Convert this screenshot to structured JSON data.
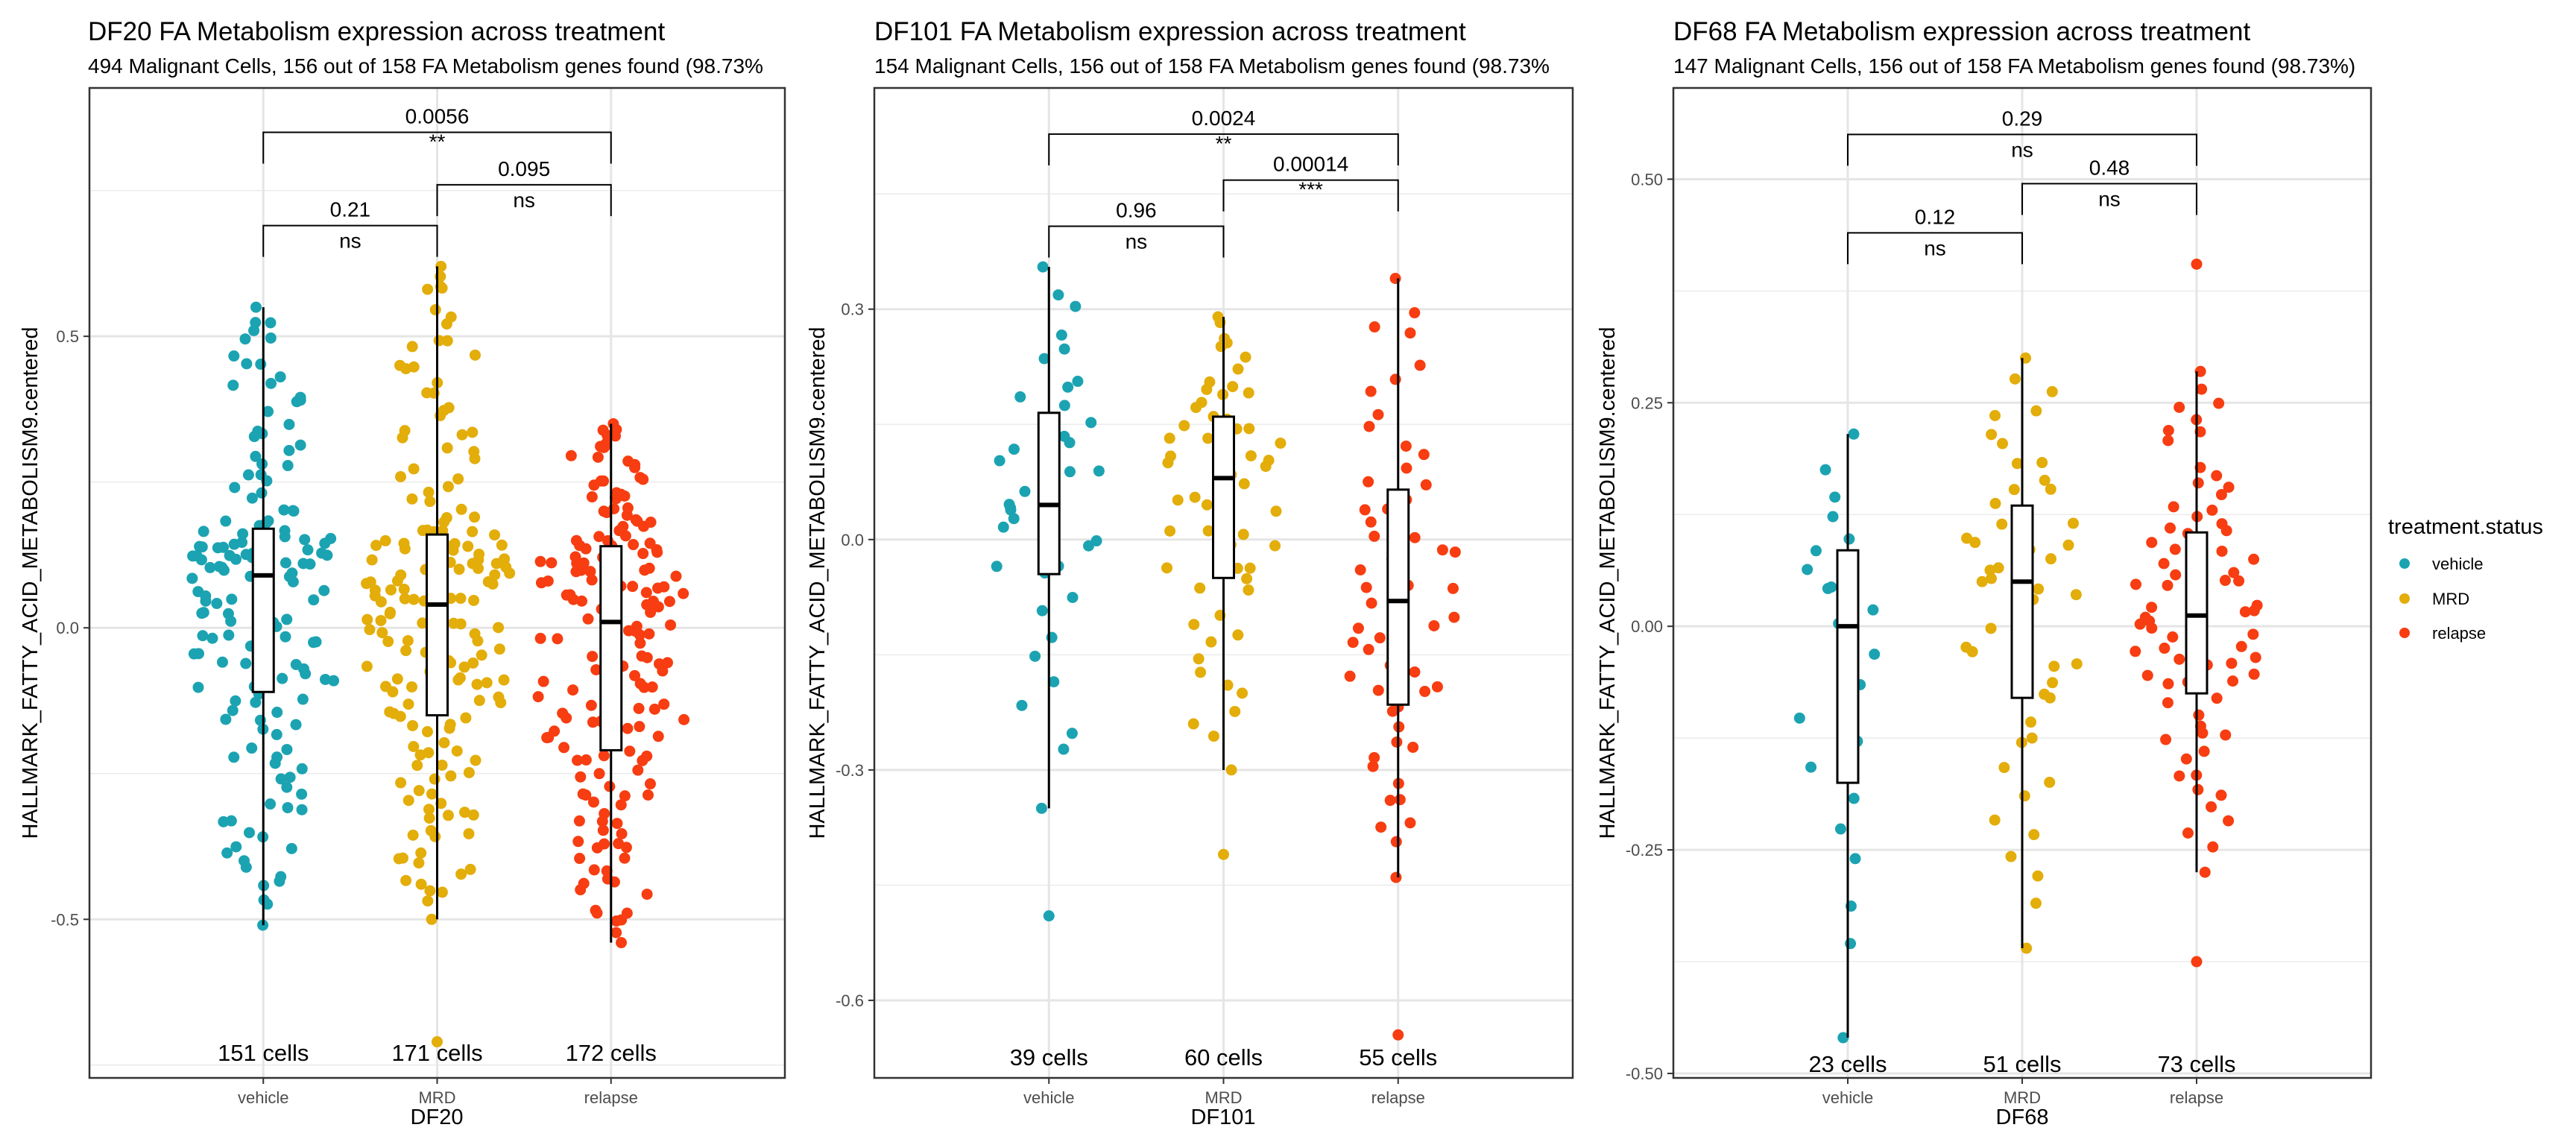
{
  "chart_data": {
    "type": "boxplot-scatter",
    "legend": {
      "title": "treatment.status",
      "position": "right",
      "entries": [
        {
          "label": "vehicle",
          "color": "#1BA3B2"
        },
        {
          "label": "MRD",
          "color": "#E3AD0A"
        },
        {
          "label": "relapse",
          "color": "#F73D11"
        }
      ]
    },
    "ylabel": "HALLMARK_FATTY_ACID_METABOLISM9.centered",
    "categories": [
      "vehicle",
      "MRD",
      "relapse"
    ],
    "panels": [
      {
        "title": "DF20 FA Metabolism expression across treatment",
        "subtitle": "494 Malignant Cells, 156 out of 158 FA Metabolism genes found (98.73%",
        "xlabel": "DF20",
        "ylim": [
          -0.772,
          0.926
        ],
        "yticks": [
          {
            "v": 0.5,
            "label": "0.5"
          },
          {
            "v": 0.0,
            "label": "0.0"
          },
          {
            "v": -0.5,
            "label": "-0.5"
          }
        ],
        "yminor": [
          0.75,
          0.25,
          -0.25,
          -0.75
        ],
        "groups": [
          {
            "name": "vehicle",
            "n": 151,
            "count_label": "151 cells",
            "min": -0.51,
            "q1": -0.11,
            "median": 0.09,
            "q3": 0.17,
            "max": 0.55,
            "spread": 0.11
          },
          {
            "name": "MRD",
            "n": 171,
            "count_label": "171 cells",
            "min": -0.5,
            "q1": -0.15,
            "median": 0.04,
            "q3": 0.16,
            "max": 0.62,
            "extra": [
              -0.71
            ],
            "spread": 0.11
          },
          {
            "name": "relapse",
            "n": 172,
            "count_label": "172 cells",
            "min": -0.54,
            "q1": -0.21,
            "median": 0.01,
            "q3": 0.14,
            "max": 0.35,
            "spread": 0.12
          }
        ],
        "comparisons": [
          {
            "from": "vehicle",
            "to": "MRD",
            "p": "0.21",
            "sig": "ns",
            "level": 1
          },
          {
            "from": "MRD",
            "to": "relapse",
            "p": "0.095",
            "sig": "ns",
            "level": 2
          },
          {
            "from": "vehicle",
            "to": "relapse",
            "p": "0.0056",
            "sig": "**",
            "level": 3
          }
        ],
        "bracket_y": [
          0.69,
          0.76,
          0.85
        ],
        "count_y": -0.73
      },
      {
        "title": "DF101 FA Metabolism expression across treatment",
        "subtitle": "154 Malignant Cells, 156 out of 158 FA Metabolism genes found (98.73%",
        "xlabel": "DF101",
        "ylim": [
          -0.701,
          0.588
        ],
        "yticks": [
          {
            "v": 0.3,
            "label": "0.3"
          },
          {
            "v": 0.0,
            "label": "0.0"
          },
          {
            "v": -0.3,
            "label": "-0.3"
          },
          {
            "v": -0.6,
            "label": "-0.6"
          }
        ],
        "yminor": [
          0.45,
          0.15,
          -0.15,
          -0.45
        ],
        "groups": [
          {
            "name": "vehicle",
            "n": 39,
            "count_label": "39 cells",
            "min": -0.35,
            "q1": -0.045,
            "median": 0.045,
            "q3": 0.165,
            "max": 0.355,
            "extra": [
              -0.49
            ],
            "spread": 0.12
          },
          {
            "name": "MRD",
            "n": 60,
            "count_label": "60 cells",
            "min": -0.3,
            "q1": -0.05,
            "median": 0.08,
            "q3": 0.16,
            "max": 0.29,
            "extra": [
              -0.41
            ],
            "spread": 0.11
          },
          {
            "name": "relapse",
            "n": 55,
            "count_label": "55 cells",
            "min": -0.44,
            "q1": -0.215,
            "median": -0.08,
            "q3": 0.065,
            "max": 0.34,
            "extra": [
              -0.645
            ],
            "spread": 0.12
          }
        ],
        "comparisons": [
          {
            "from": "vehicle",
            "to": "MRD",
            "p": "0.96",
            "sig": "ns",
            "level": 1
          },
          {
            "from": "MRD",
            "to": "relapse",
            "p": "0.00014",
            "sig": "***",
            "level": 2
          },
          {
            "from": "vehicle",
            "to": "relapse",
            "p": "0.0024",
            "sig": "**",
            "level": 3
          }
        ],
        "bracket_y": [
          0.408,
          0.468,
          0.528
        ],
        "count_y": -0.675
      },
      {
        "title": "DF68 FA Metabolism expression across treatment",
        "subtitle": "147 Malignant Cells, 156 out of 158 FA Metabolism genes found (98.73%)",
        "xlabel": "DF68",
        "ylim": [
          -0.505,
          0.602
        ],
        "yticks": [
          {
            "v": 0.5,
            "label": "0.50"
          },
          {
            "v": 0.25,
            "label": "0.25"
          },
          {
            "v": 0.0,
            "label": "0.00"
          },
          {
            "v": -0.25,
            "label": "-0.25"
          },
          {
            "v": -0.5,
            "label": "-0.50"
          }
        ],
        "yminor": [
          0.375,
          0.125,
          -0.125,
          -0.375
        ],
        "groups": [
          {
            "name": "vehicle",
            "n": 23,
            "count_label": "23 cells",
            "min": -0.46,
            "q1": -0.175,
            "median": 0.0,
            "q3": 0.085,
            "max": 0.215,
            "spread": 0.13
          },
          {
            "name": "MRD",
            "n": 51,
            "count_label": "51 cells",
            "min": -0.36,
            "q1": -0.08,
            "median": 0.05,
            "q3": 0.135,
            "max": 0.3,
            "spread": 0.11
          },
          {
            "name": "relapse",
            "n": 73,
            "count_label": "73 cells",
            "min": -0.275,
            "q1": -0.075,
            "median": 0.012,
            "q3": 0.105,
            "max": 0.285,
            "extra": [
              0.405,
              -0.375
            ],
            "spread": 0.11
          }
        ],
        "comparisons": [
          {
            "from": "vehicle",
            "to": "MRD",
            "p": "0.12",
            "sig": "ns",
            "level": 1
          },
          {
            "from": "MRD",
            "to": "relapse",
            "p": "0.48",
            "sig": "ns",
            "level": 2
          },
          {
            "from": "vehicle",
            "to": "relapse",
            "p": "0.29",
            "sig": "ns",
            "level": 3
          }
        ],
        "bracket_y": [
          0.44,
          0.495,
          0.55
        ],
        "count_y": -0.49
      }
    ]
  }
}
